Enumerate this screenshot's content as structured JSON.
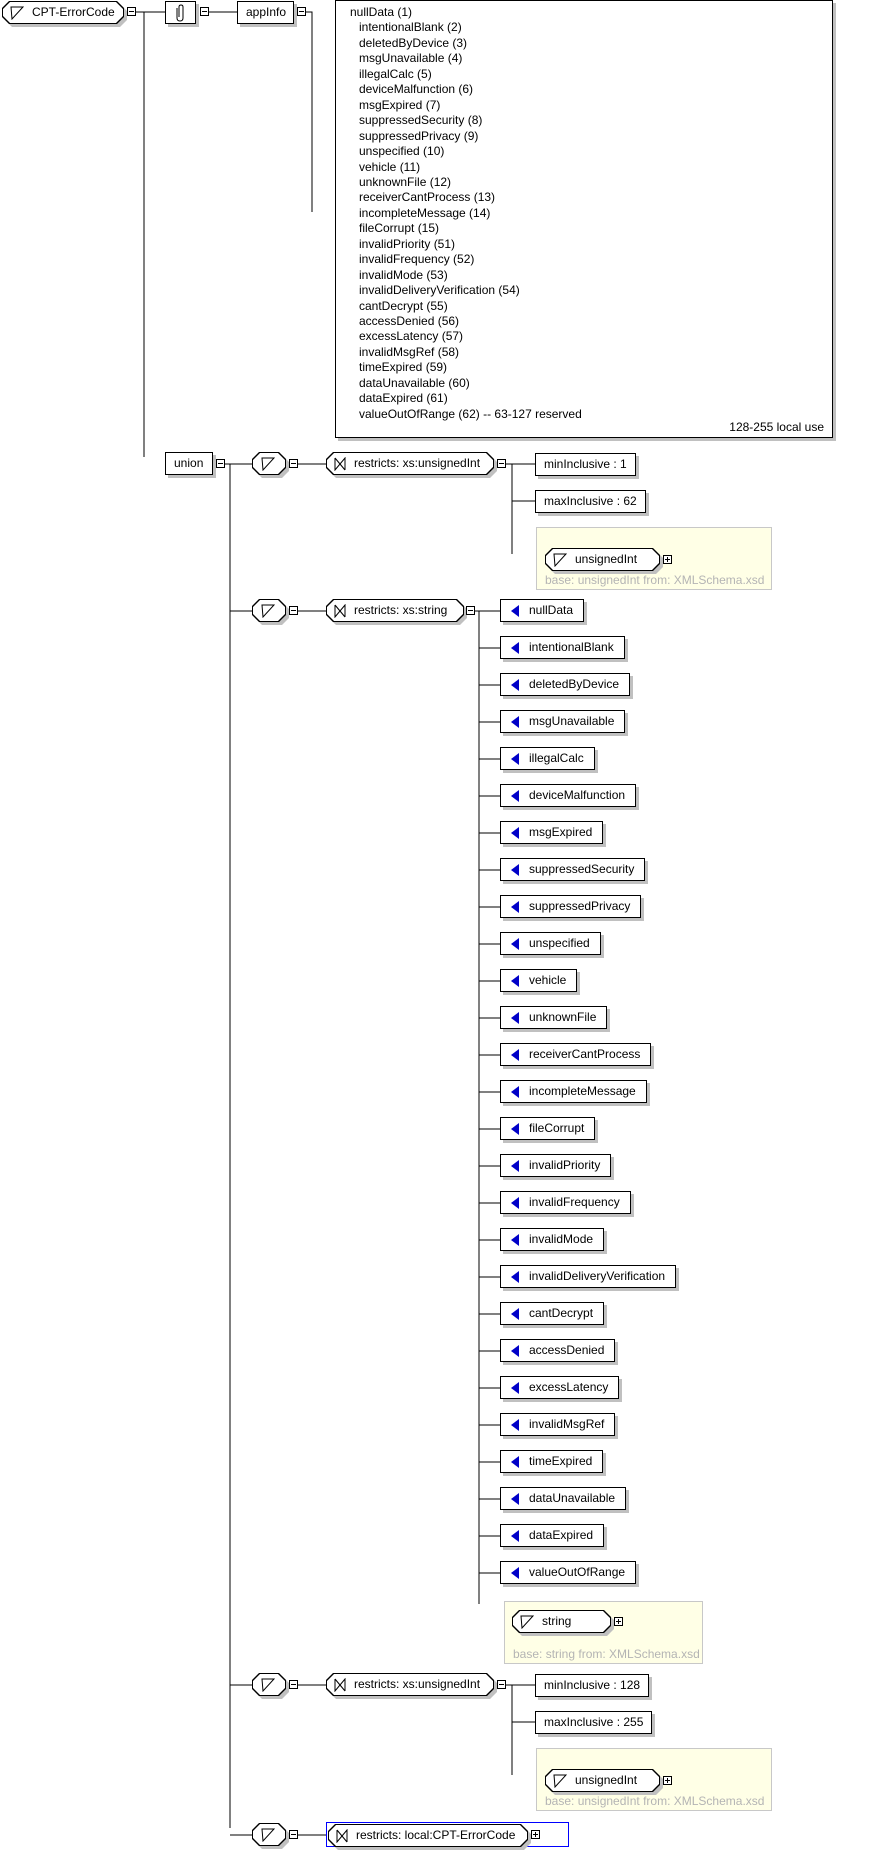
{
  "root": {
    "name": "CPT-ErrorCode",
    "icon": "simple-type-icon"
  },
  "annotation": {
    "icon": "paperclip-icon"
  },
  "appinfo": {
    "label": "appInfo"
  },
  "documentation": {
    "lines": [
      "nullData (1)",
      "intentionalBlank (2)",
      "deletedByDevice (3)",
      "msgUnavailable (4)",
      "illegalCalc (5)",
      "deviceMalfunction (6)",
      "msgExpired (7)",
      "suppressedSecurity (8)",
      "suppressedPrivacy (9)",
      "unspecified (10)",
      "vehicle (11)",
      "unknownFile (12)",
      "receiverCantProcess (13)",
      "incompleteMessage (14)",
      "fileCorrupt (15)",
      "invalidPriority (51)",
      "invalidFrequency (52)",
      "invalidMode (53)",
      "invalidDeliveryVerification (54)",
      "cantDecrypt (55)",
      "accessDenied (56)",
      "excessLatency (57)",
      "invalidMsgRef (58)",
      "timeExpired (59)",
      "dataUnavailable (60)",
      "dataExpired (61)",
      "valueOutOfRange (62) -- 63-127 reserved"
    ],
    "right_note": "128-255 local use"
  },
  "union": {
    "label": "union"
  },
  "branch1": {
    "restricts": "restricts: xs:unsignedInt",
    "min": "minInclusive : 1",
    "max": "maxInclusive : 62",
    "base_type": "unsignedInt",
    "base_note": "base: unsignedInt from: XMLSchema.xsd"
  },
  "branch2": {
    "restricts": "restricts: xs:string",
    "enums": [
      "nullData",
      "intentionalBlank",
      "deletedByDevice",
      "msgUnavailable",
      "illegalCalc",
      "deviceMalfunction",
      "msgExpired",
      "suppressedSecurity",
      "suppressedPrivacy",
      "unspecified",
      "vehicle",
      "unknownFile",
      "receiverCantProcess",
      "incompleteMessage",
      "fileCorrupt",
      "invalidPriority",
      "invalidFrequency",
      "invalidMode",
      "invalidDeliveryVerification",
      "cantDecrypt",
      "accessDenied",
      "excessLatency",
      "invalidMsgRef",
      "timeExpired",
      "dataUnavailable",
      "dataExpired",
      "valueOutOfRange"
    ],
    "base_type": "string",
    "base_note": "base: string from: XMLSchema.xsd"
  },
  "branch3": {
    "restricts": "restricts: xs:unsignedInt",
    "min": "minInclusive : 128",
    "max": "maxInclusive : 255",
    "base_type": "unsignedInt",
    "base_note": "base: unsignedInt from: XMLSchema.xsd"
  },
  "branch4": {
    "restricts": "restricts: local:CPT-ErrorCode"
  },
  "colors": {
    "enum_marker": "#0000c8",
    "selection": "#0000ff",
    "base_box": "#ffffe6"
  }
}
